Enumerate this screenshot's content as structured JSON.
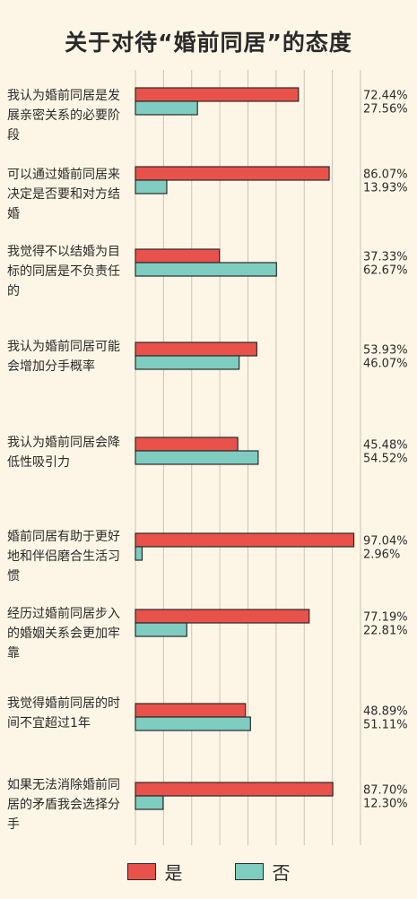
{
  "chart_data": {
    "type": "bar",
    "orientation": "horizontal",
    "title": "关于对待“婚前同居”的态度",
    "categories": [
      "我认为婚前同居是发展亲密关系的必要阶段",
      "可以通过婚前同居来决定是否要和对方结婚",
      "我觉得不以结婚为目标的同居是不负责任的",
      "我认为婚前同居可能会增加分手概率",
      "我认为婚前同居会降低性吸引力",
      "婚前同居有助于更好地和伴侣磨合生活习惯",
      "经历过婚前同居步入的婚姻关系会更加牢靠",
      "我觉得婚前同居的时间不宜超过1年",
      "如果无法消除婚前同居的矛盾我会选择分手"
    ],
    "category_lines": [
      [
        "我认为婚前同居是发",
        "展亲密关系的必要阶",
        "段"
      ],
      [
        "可以通过婚前同居来",
        "决定是否要和对方结",
        "婚"
      ],
      [
        "我觉得不以结婚为目",
        "标的同居是不负责任",
        "的"
      ],
      [
        "我认为婚前同居可能",
        "会增加分手概率"
      ],
      [
        "我认为婚前同居会降",
        "低性吸引力"
      ],
      [
        "婚前同居有助于更好",
        "地和伴侣磨合生活习",
        "惯"
      ],
      [
        "经历过婚前同居步入",
        "的婚姻关系会更加牢",
        "靠"
      ],
      [
        "我觉得婚前同居的时",
        "间不宜超过1年"
      ],
      [
        "如果无法消除婚前同",
        "居的矛盾我会选择分",
        "手"
      ]
    ],
    "series": [
      {
        "name": "是",
        "color": "#e8524a",
        "values": [
          72.44,
          86.07,
          37.33,
          53.93,
          45.48,
          97.04,
          77.19,
          48.89,
          87.7
        ],
        "labels": [
          "72.44%",
          "86.07%",
          "37.33%",
          "53.93%",
          "45.48%",
          "97.04%",
          "77.19%",
          "48.89%",
          "87.70%"
        ]
      },
      {
        "name": "否",
        "color": "#7ecdc0",
        "values": [
          27.56,
          13.93,
          62.67,
          46.07,
          54.52,
          2.96,
          22.81,
          51.11,
          12.3
        ],
        "labels": [
          "27.56%",
          "13.93%",
          "62.67%",
          "46.07%",
          "54.52%",
          "2.96%",
          "22.81%",
          "51.11%",
          "12.30%"
        ]
      }
    ],
    "xlim": [
      0,
      100
    ],
    "unit": "%",
    "grid": true,
    "legend_position": "bottom"
  }
}
